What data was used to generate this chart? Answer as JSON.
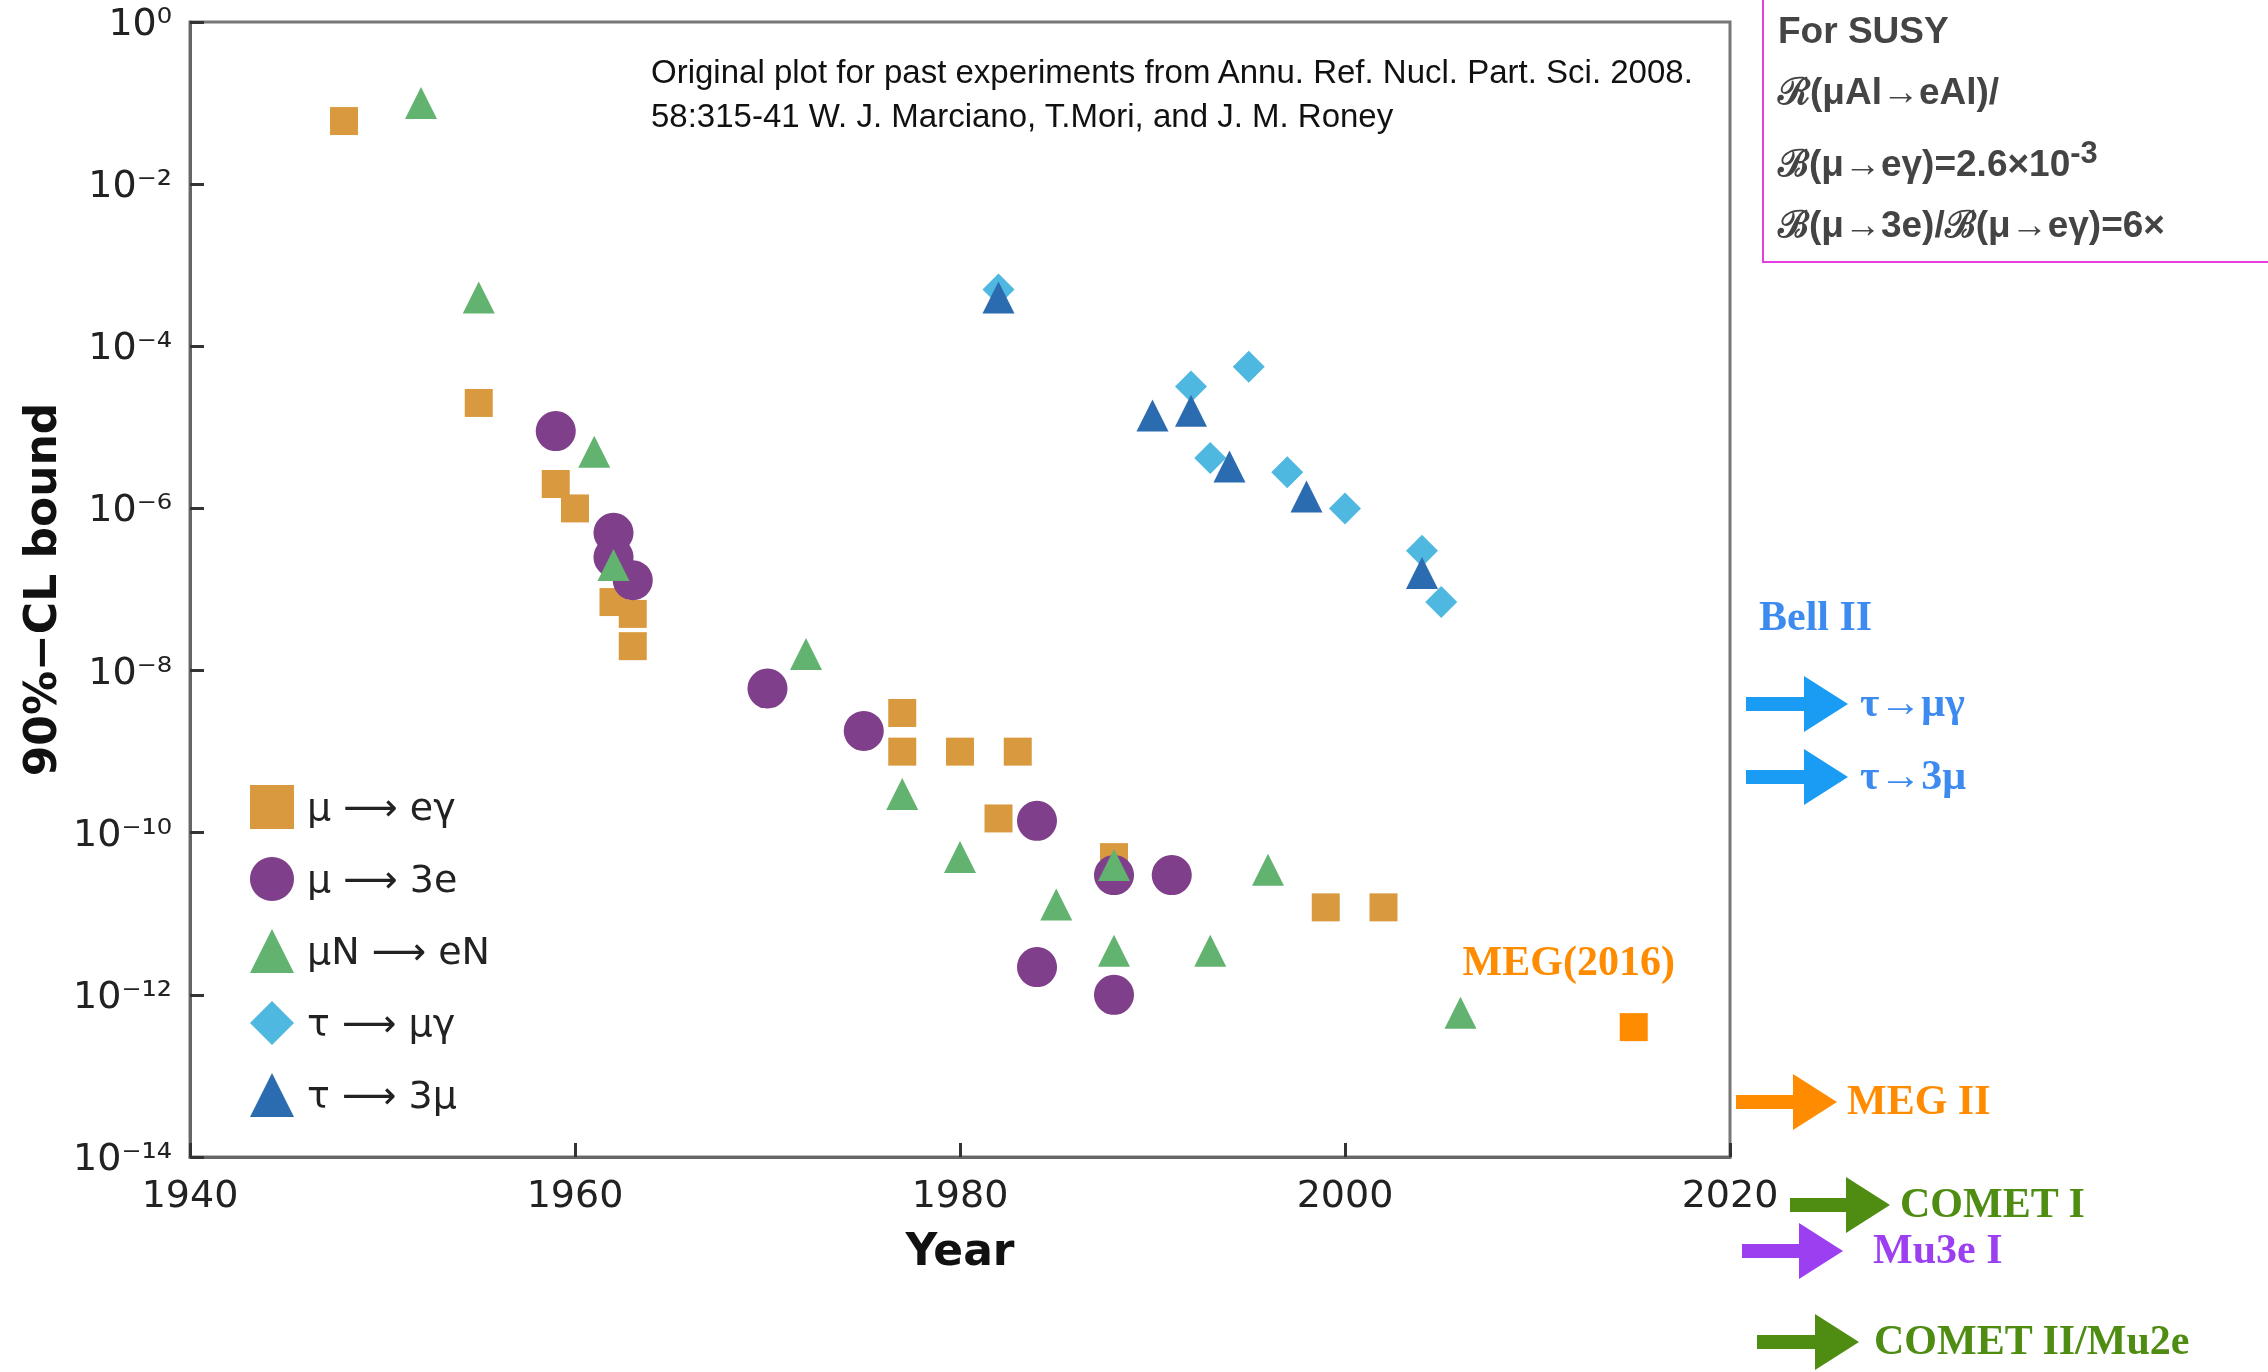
{
  "chart_data": {
    "type": "scatter",
    "xlabel": "Year",
    "ylabel": "90%−CL bound",
    "xlim": [
      1940,
      2020
    ],
    "xticks": [
      1940,
      1960,
      1980,
      2000,
      2020
    ],
    "ylim": [
      1e-14,
      1
    ],
    "log": "y",
    "yticks": [
      {
        "value": 1,
        "label": "10⁰"
      },
      {
        "value": 0.01,
        "label": "10⁻²"
      },
      {
        "value": 0.0001,
        "label": "10⁻⁴"
      },
      {
        "value": 1e-06,
        "label": "10⁻⁶"
      },
      {
        "value": 1e-08,
        "label": "10⁻⁸"
      },
      {
        "value": 1e-10,
        "label": "10⁻¹⁰"
      },
      {
        "value": 1e-12,
        "label": "10⁻¹²"
      },
      {
        "value": 1e-14,
        "label": "10⁻¹⁴"
      }
    ],
    "grid": false,
    "legend": "bottom left",
    "series": [
      {
        "name": "μ ⟶ eγ",
        "color": "#d99a3f",
        "marker": "square",
        "x": [
          1948,
          1955,
          1959,
          1960,
          1962,
          1963,
          1963,
          1977,
          1977,
          1980,
          1983,
          1982,
          1988,
          1999,
          2002
        ],
        "values": [
          0.06,
          2e-05,
          2e-06,
          1e-06,
          7e-08,
          5e-08,
          2e-08,
          3e-09,
          1e-09,
          1e-09,
          1e-09,
          1.5e-10,
          5e-11,
          1.2e-11,
          1.2e-11
        ]
      },
      {
        "name": "μ ⟶ 3e",
        "color": "#7f3f8a",
        "marker": "circle",
        "x": [
          1959,
          1962,
          1962,
          1963,
          1970,
          1975,
          1984,
          1988,
          1991,
          1984,
          1988
        ],
        "values": [
          9e-06,
          5e-07,
          2.5e-07,
          1.3e-07,
          6e-09,
          1.8e-09,
          1.4e-10,
          3e-11,
          3e-11,
          2.2e-12,
          1e-12
        ]
      },
      {
        "name": "μN ⟶ eN",
        "color": "#62b36f",
        "marker": "triangle",
        "x": [
          1952,
          1955,
          1961,
          1962,
          1972,
          1977,
          1980,
          1988,
          1985,
          1988,
          1993,
          1996,
          2006
        ],
        "values": [
          0.1,
          0.0004,
          5e-06,
          2e-07,
          1.6e-08,
          3e-10,
          5e-11,
          4e-11,
          1.3e-11,
          3.5e-12,
          3.5e-12,
          3.5e-11,
          6e-13
        ]
      },
      {
        "name": "τ ⟶ μγ",
        "color": "#4fb8e0",
        "marker": "diamond",
        "x": [
          1982,
          1992,
          1995,
          1993,
          1997,
          2000,
          2004,
          2005
        ],
        "values": [
          0.0005,
          3.2e-05,
          5.6e-05,
          4.2e-06,
          2.8e-06,
          1e-06,
          3e-07,
          7e-08
        ]
      },
      {
        "name": "τ ⟶ 3μ",
        "color": "#2b6cb0",
        "marker": "triangle",
        "x": [
          1982,
          1990,
          1992,
          1994,
          1998,
          2004
        ],
        "values": [
          0.0004,
          1.4e-05,
          1.6e-05,
          3.3e-06,
          1.4e-06,
          1.6e-07
        ]
      },
      {
        "color": "#ff8c00",
        "marker": "square",
        "x": [
          2015
        ],
        "values": [
          4e-13
        ]
      }
    ],
    "annotations": [
      "Original plot for past experiments from Annu. Ref. Nucl. Part. Sci. 2008. 58:315-41 W. J. Marciano, T.Mori, and J. M. Roney",
      "For SUSY\nℛ(μAl→eAl)/\nℬ(μ→eγ)=2.6×10$^{-3}$\nℬ(μ→3e)/ℬ(μ→eγ)=6×",
      {
        "text": "MEG(2016)",
        "x": 2015,
        "y": 4e-13
      },
      "Bell II",
      "τ→μγ",
      "τ→3μ",
      "MEG II",
      "COMET I",
      "Mu3e I",
      "COMET II/Mu2e"
    ]
  }
}
